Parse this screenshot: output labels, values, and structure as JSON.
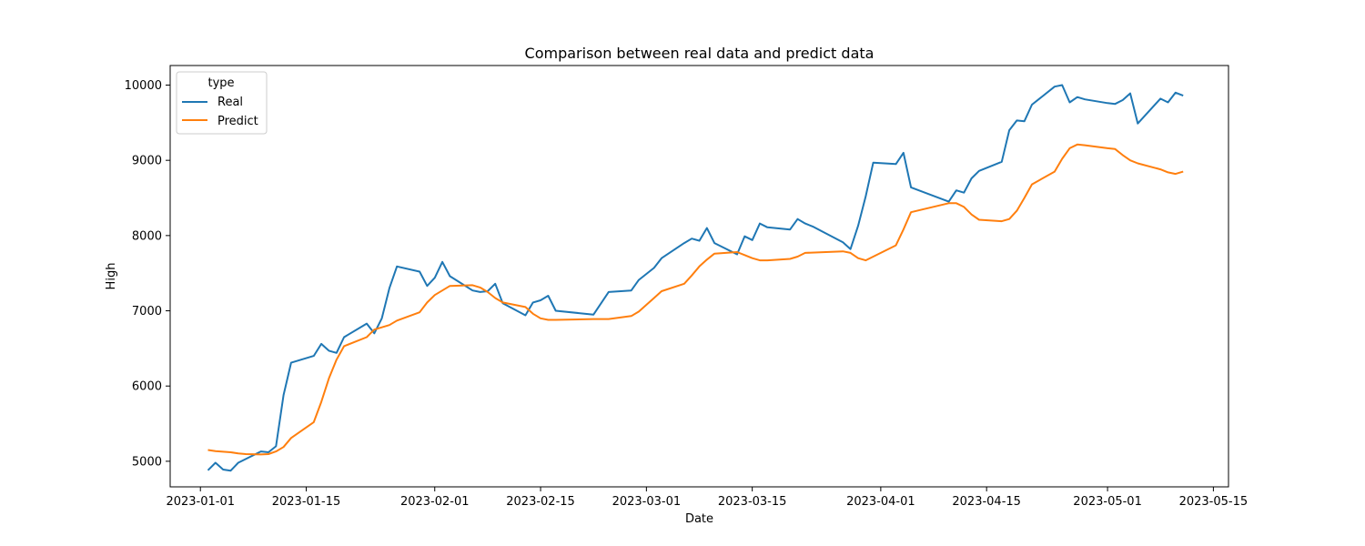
{
  "chart_data": {
    "type": "line",
    "title": "Comparison between real data and predict data",
    "xlabel": "Date",
    "ylabel": "High",
    "xlim": [
      "2022-12-28",
      "2023-05-17"
    ],
    "ylim": [
      4660,
      10260
    ],
    "grid": false,
    "legend": {
      "title": "type",
      "placement": "top-left"
    },
    "x_ticks": [
      "2023-01-01",
      "2023-01-15",
      "2023-02-01",
      "2023-02-15",
      "2023-03-01",
      "2023-03-15",
      "2023-04-01",
      "2023-04-15",
      "2023-05-01",
      "2023-05-15"
    ],
    "y_ticks": [
      5000,
      6000,
      7000,
      8000,
      9000,
      10000
    ],
    "series": [
      {
        "name": "Real",
        "color": "#1f77b4",
        "points": [
          [
            "2023-01-02",
            4880
          ],
          [
            "2023-01-03",
            4980
          ],
          [
            "2023-01-04",
            4890
          ],
          [
            "2023-01-05",
            4875
          ],
          [
            "2023-01-06",
            4980
          ],
          [
            "2023-01-07",
            5030
          ],
          [
            "2023-01-09",
            5130
          ],
          [
            "2023-01-10",
            5120
          ],
          [
            "2023-01-11",
            5200
          ],
          [
            "2023-01-12",
            5880
          ],
          [
            "2023-01-13",
            6310
          ],
          [
            "2023-01-16",
            6400
          ],
          [
            "2023-01-17",
            6560
          ],
          [
            "2023-01-18",
            6470
          ],
          [
            "2023-01-19",
            6440
          ],
          [
            "2023-01-20",
            6650
          ],
          [
            "2023-01-23",
            6830
          ],
          [
            "2023-01-24",
            6700
          ],
          [
            "2023-01-25",
            6900
          ],
          [
            "2023-01-26",
            7300
          ],
          [
            "2023-01-27",
            7590
          ],
          [
            "2023-01-30",
            7520
          ],
          [
            "2023-01-31",
            7330
          ],
          [
            "2023-02-01",
            7440
          ],
          [
            "2023-02-02",
            7650
          ],
          [
            "2023-02-03",
            7460
          ],
          [
            "2023-02-06",
            7270
          ],
          [
            "2023-02-07",
            7250
          ],
          [
            "2023-02-08",
            7260
          ],
          [
            "2023-02-09",
            7360
          ],
          [
            "2023-02-10",
            7100
          ],
          [
            "2023-02-13",
            6940
          ],
          [
            "2023-02-14",
            7110
          ],
          [
            "2023-02-15",
            7140
          ],
          [
            "2023-02-16",
            7200
          ],
          [
            "2023-02-17",
            7000
          ],
          [
            "2023-02-22",
            6950
          ],
          [
            "2023-02-24",
            7250
          ],
          [
            "2023-02-27",
            7270
          ],
          [
            "2023-02-28",
            7410
          ],
          [
            "2023-03-02",
            7570
          ],
          [
            "2023-03-03",
            7700
          ],
          [
            "2023-03-06",
            7900
          ],
          [
            "2023-03-07",
            7960
          ],
          [
            "2023-03-08",
            7930
          ],
          [
            "2023-03-09",
            8100
          ],
          [
            "2023-03-10",
            7900
          ],
          [
            "2023-03-13",
            7750
          ],
          [
            "2023-03-14",
            7990
          ],
          [
            "2023-03-15",
            7940
          ],
          [
            "2023-03-16",
            8160
          ],
          [
            "2023-03-17",
            8110
          ],
          [
            "2023-03-20",
            8080
          ],
          [
            "2023-03-21",
            8220
          ],
          [
            "2023-03-22",
            8160
          ],
          [
            "2023-03-23",
            8120
          ],
          [
            "2023-03-27",
            7910
          ],
          [
            "2023-03-28",
            7820
          ],
          [
            "2023-03-29",
            8130
          ],
          [
            "2023-03-30",
            8520
          ],
          [
            "2023-03-31",
            8970
          ],
          [
            "2023-04-03",
            8950
          ],
          [
            "2023-04-04",
            9100
          ],
          [
            "2023-04-05",
            8640
          ],
          [
            "2023-04-10",
            8450
          ],
          [
            "2023-04-11",
            8600
          ],
          [
            "2023-04-12",
            8570
          ],
          [
            "2023-04-13",
            8760
          ],
          [
            "2023-04-14",
            8860
          ],
          [
            "2023-04-17",
            8980
          ],
          [
            "2023-04-18",
            9400
          ],
          [
            "2023-04-19",
            9530
          ],
          [
            "2023-04-20",
            9520
          ],
          [
            "2023-04-21",
            9740
          ],
          [
            "2023-04-24",
            9980
          ],
          [
            "2023-04-25",
            10000
          ],
          [
            "2023-04-26",
            9770
          ],
          [
            "2023-04-27",
            9840
          ],
          [
            "2023-04-28",
            9810
          ],
          [
            "2023-05-01",
            9760
          ],
          [
            "2023-05-02",
            9750
          ],
          [
            "2023-05-03",
            9800
          ],
          [
            "2023-05-04",
            9890
          ],
          [
            "2023-05-05",
            9490
          ],
          [
            "2023-05-08",
            9820
          ],
          [
            "2023-05-09",
            9770
          ],
          [
            "2023-05-10",
            9900
          ],
          [
            "2023-05-11",
            9860
          ]
        ]
      },
      {
        "name": "Predict",
        "color": "#ff7f0e",
        "points": [
          [
            "2023-01-02",
            5150
          ],
          [
            "2023-01-03",
            5135
          ],
          [
            "2023-01-05",
            5120
          ],
          [
            "2023-01-06",
            5105
          ],
          [
            "2023-01-07",
            5095
          ],
          [
            "2023-01-09",
            5090
          ],
          [
            "2023-01-10",
            5095
          ],
          [
            "2023-01-11",
            5130
          ],
          [
            "2023-01-12",
            5190
          ],
          [
            "2023-01-13",
            5310
          ],
          [
            "2023-01-16",
            5520
          ],
          [
            "2023-01-17",
            5790
          ],
          [
            "2023-01-18",
            6100
          ],
          [
            "2023-01-19",
            6350
          ],
          [
            "2023-01-20",
            6530
          ],
          [
            "2023-01-23",
            6650
          ],
          [
            "2023-01-24",
            6750
          ],
          [
            "2023-01-26",
            6810
          ],
          [
            "2023-01-27",
            6870
          ],
          [
            "2023-01-30",
            6980
          ],
          [
            "2023-01-31",
            7110
          ],
          [
            "2023-02-01",
            7210
          ],
          [
            "2023-02-02",
            7270
          ],
          [
            "2023-02-03",
            7330
          ],
          [
            "2023-02-06",
            7340
          ],
          [
            "2023-02-07",
            7310
          ],
          [
            "2023-02-08",
            7250
          ],
          [
            "2023-02-09",
            7170
          ],
          [
            "2023-02-10",
            7110
          ],
          [
            "2023-02-13",
            7050
          ],
          [
            "2023-02-14",
            6960
          ],
          [
            "2023-02-15",
            6900
          ],
          [
            "2023-02-16",
            6880
          ],
          [
            "2023-02-17",
            6880
          ],
          [
            "2023-02-22",
            6890
          ],
          [
            "2023-02-24",
            6890
          ],
          [
            "2023-02-27",
            6930
          ],
          [
            "2023-02-28",
            6990
          ],
          [
            "2023-03-01",
            7080
          ],
          [
            "2023-03-02",
            7170
          ],
          [
            "2023-03-03",
            7260
          ],
          [
            "2023-03-06",
            7360
          ],
          [
            "2023-03-07",
            7470
          ],
          [
            "2023-03-08",
            7590
          ],
          [
            "2023-03-09",
            7680
          ],
          [
            "2023-03-10",
            7760
          ],
          [
            "2023-03-13",
            7780
          ],
          [
            "2023-03-14",
            7740
          ],
          [
            "2023-03-15",
            7700
          ],
          [
            "2023-03-16",
            7670
          ],
          [
            "2023-03-17",
            7670
          ],
          [
            "2023-03-20",
            7690
          ],
          [
            "2023-03-21",
            7720
          ],
          [
            "2023-03-22",
            7770
          ],
          [
            "2023-03-27",
            7790
          ],
          [
            "2023-03-28",
            7770
          ],
          [
            "2023-03-29",
            7700
          ],
          [
            "2023-03-30",
            7670
          ],
          [
            "2023-03-31",
            7720
          ],
          [
            "2023-04-03",
            7870
          ],
          [
            "2023-04-04",
            8080
          ],
          [
            "2023-04-05",
            8310
          ],
          [
            "2023-04-10",
            8430
          ],
          [
            "2023-04-11",
            8430
          ],
          [
            "2023-04-12",
            8380
          ],
          [
            "2023-04-13",
            8280
          ],
          [
            "2023-04-14",
            8210
          ],
          [
            "2023-04-17",
            8190
          ],
          [
            "2023-04-18",
            8220
          ],
          [
            "2023-04-19",
            8330
          ],
          [
            "2023-04-20",
            8500
          ],
          [
            "2023-04-21",
            8680
          ],
          [
            "2023-04-24",
            8850
          ],
          [
            "2023-04-25",
            9020
          ],
          [
            "2023-04-26",
            9160
          ],
          [
            "2023-04-27",
            9210
          ],
          [
            "2023-04-28",
            9200
          ],
          [
            "2023-05-01",
            9160
          ],
          [
            "2023-05-02",
            9150
          ],
          [
            "2023-05-03",
            9070
          ],
          [
            "2023-05-04",
            9000
          ],
          [
            "2023-05-05",
            8960
          ],
          [
            "2023-05-08",
            8880
          ],
          [
            "2023-05-09",
            8840
          ],
          [
            "2023-05-10",
            8820
          ],
          [
            "2023-05-11",
            8850
          ]
        ]
      }
    ]
  }
}
